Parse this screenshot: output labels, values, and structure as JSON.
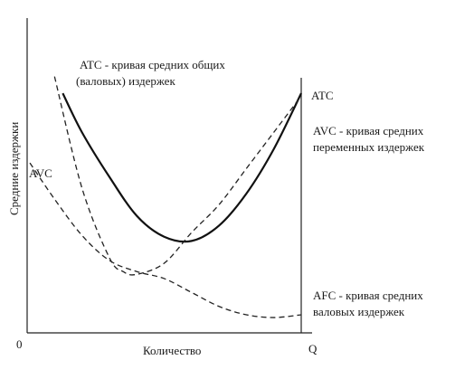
{
  "chart_data": {
    "type": "line",
    "title": "",
    "xlabel": "Количество",
    "ylabel": "Средние издержки",
    "origin_label": "0",
    "x_end_label": "Q",
    "xlim": [
      0,
      10
    ],
    "ylim": [
      0,
      10
    ],
    "grid": false,
    "legend": "none",
    "series": [
      {
        "name": "ATC",
        "style": "solid",
        "color": "#111111",
        "label_lines": [
          "ATC - кривая средних общих",
          "(валовых) издержек"
        ],
        "end_label": "ATC",
        "x": [
          1.3,
          2.0,
          3.0,
          4.0,
          5.0,
          6.0,
          7.0,
          8.0,
          9.0,
          10.0
        ],
        "y": [
          8.6,
          7.2,
          5.6,
          4.2,
          3.45,
          3.3,
          3.85,
          5.0,
          6.6,
          8.6
        ]
      },
      {
        "name": "AVC",
        "style": "dashed",
        "color": "#222222",
        "label_lines": [
          "AVC - кривая средних",
          "переменных издержек"
        ],
        "end_label": "AVC",
        "x": [
          1.0,
          2.0,
          3.0,
          3.5,
          4.0,
          5.0,
          6.0,
          7.0,
          8.0,
          9.0,
          10.0
        ],
        "y": [
          9.2,
          5.2,
          2.7,
          2.2,
          2.1,
          2.5,
          3.6,
          4.6,
          5.9,
          7.2,
          8.5
        ]
      },
      {
        "name": "AFC",
        "style": "dashed",
        "color": "#222222",
        "label_lines": [
          "AFC - кривая средних",
          "валовых издержек"
        ],
        "x": [
          0.1,
          1.0,
          2.0,
          3.0,
          4.0,
          5.0,
          6.0,
          7.0,
          8.0,
          9.0,
          10.0
        ],
        "y": [
          6.1,
          4.8,
          3.5,
          2.6,
          2.2,
          1.95,
          1.45,
          0.95,
          0.65,
          0.55,
          0.65
        ]
      }
    ]
  }
}
